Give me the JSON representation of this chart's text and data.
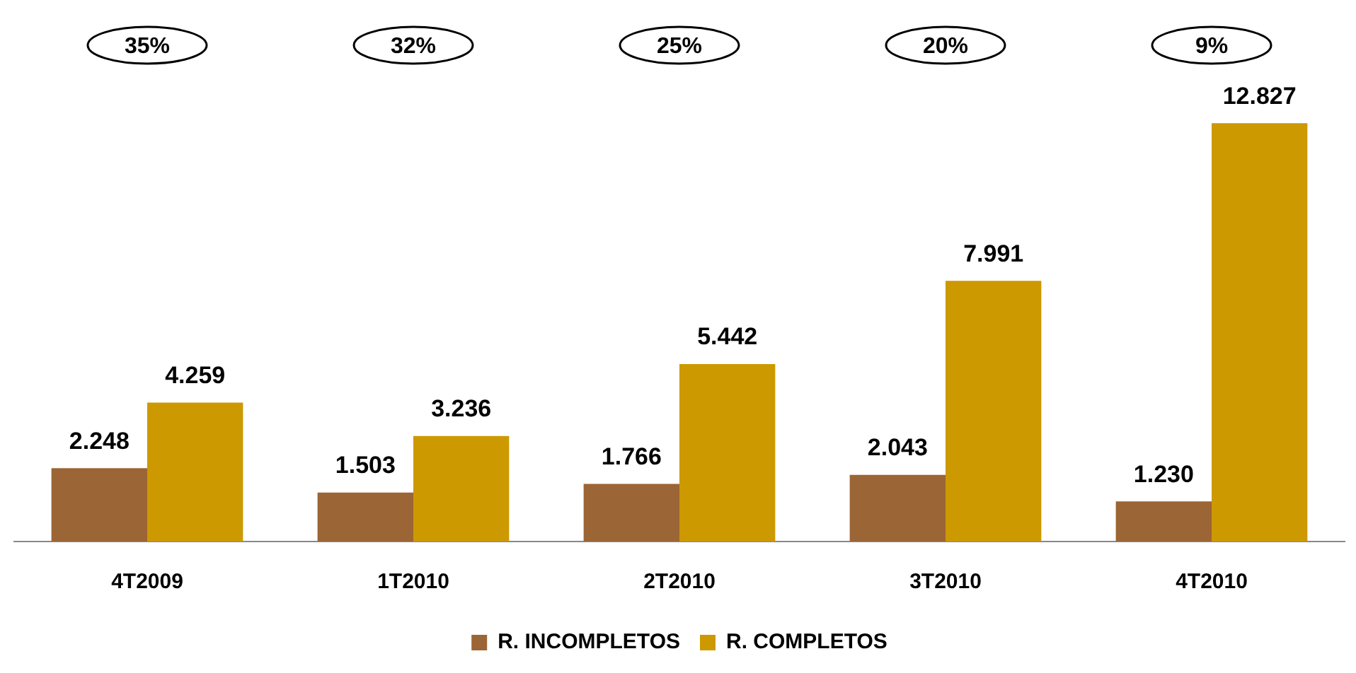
{
  "chart_data": {
    "type": "bar",
    "categories": [
      "4T2009",
      "1T2010",
      "2T2010",
      "3T2010",
      "4T2010"
    ],
    "series": [
      {
        "name": "R. INCOMPLETOS",
        "color": "#9c6535",
        "values": [
          2248,
          1503,
          1766,
          2043,
          1230
        ],
        "value_labels": [
          "2.248",
          "1.503",
          "1.766",
          "2.043",
          "1.230"
        ]
      },
      {
        "name": "R. COMPLETOS",
        "color": "#cc9900",
        "values": [
          4259,
          3236,
          5442,
          7991,
          12827
        ],
        "value_labels": [
          "4.259",
          "3.236",
          "5.442",
          "7.991",
          "12.827"
        ]
      }
    ],
    "annotations": [
      "35%",
      "32%",
      "25%",
      "20%",
      "9%"
    ],
    "legend": "bottom",
    "grid": false
  }
}
